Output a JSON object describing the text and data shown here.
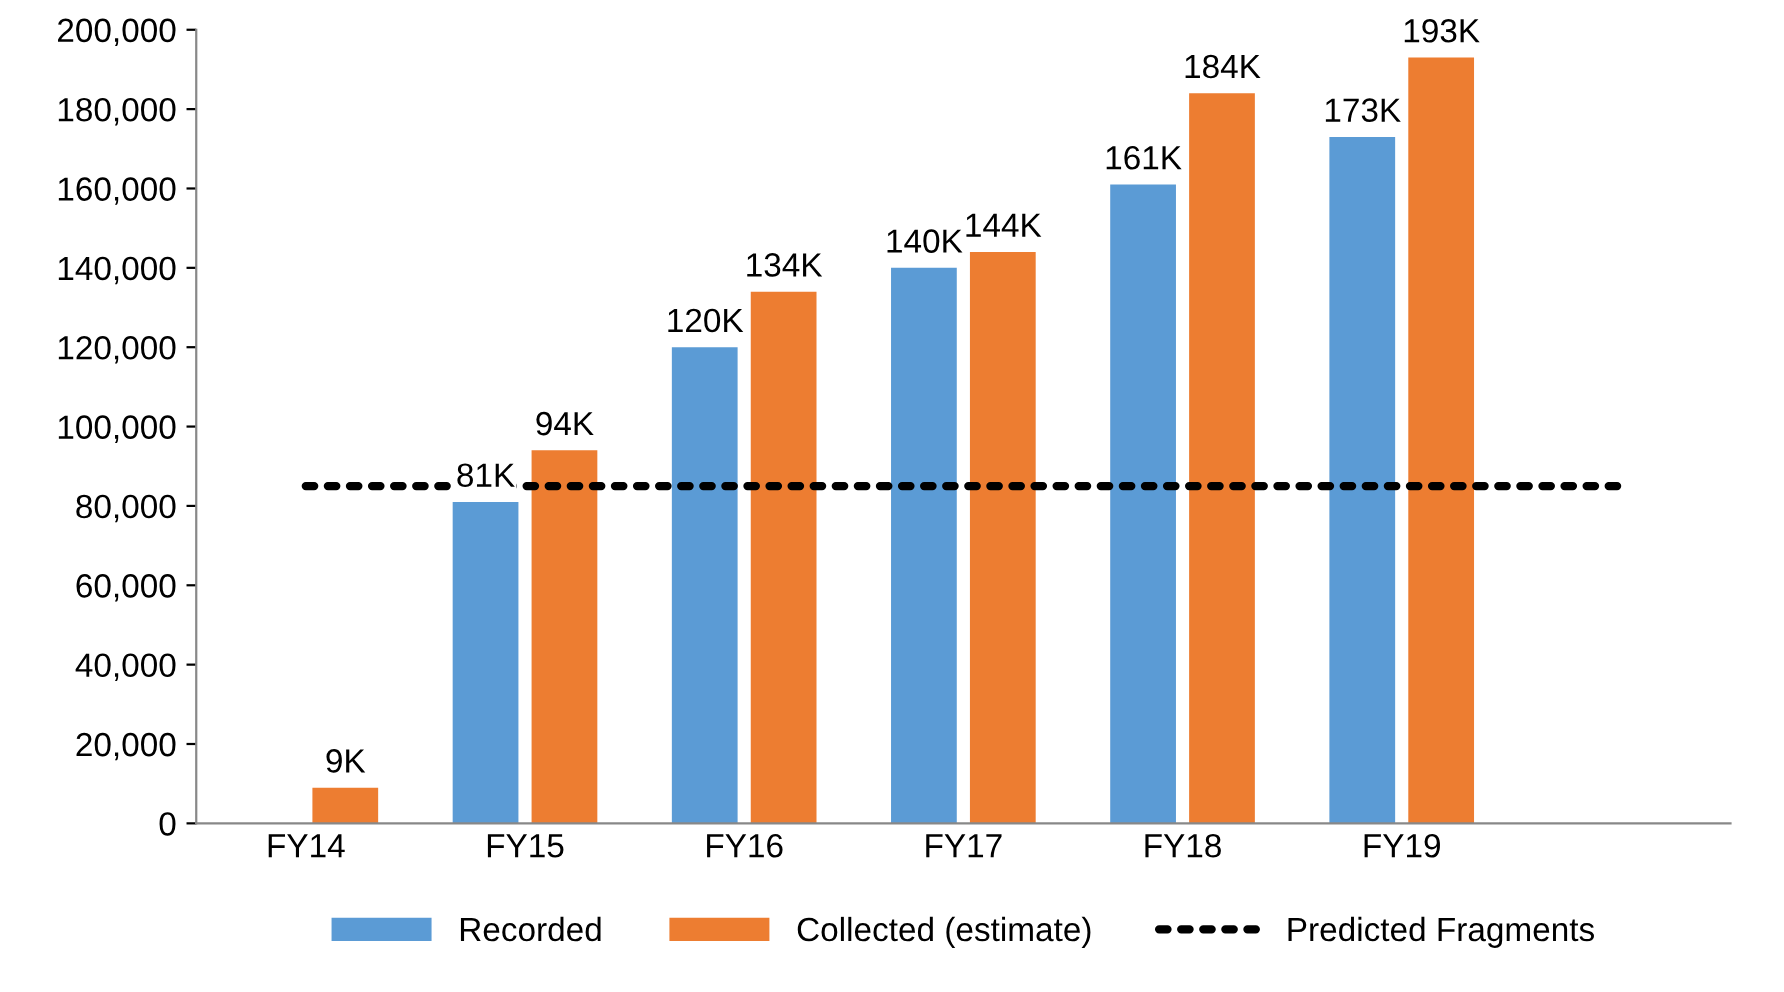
{
  "chart_data": {
    "type": "bar",
    "categories": [
      "FY14",
      "FY15",
      "FY16",
      "FY17",
      "FY18",
      "FY19",
      null
    ],
    "series": [
      {
        "name": "Recorded",
        "color": "#5b9bd5",
        "values": [
          null,
          81000,
          120000,
          140000,
          161000,
          173000,
          null
        ],
        "value_labels": [
          null,
          "81K",
          "120K",
          "140K",
          "161K",
          "173K",
          null
        ]
      },
      {
        "name": "Collected (estimate)",
        "color": "#ed7d31",
        "values": [
          9000,
          94000,
          134000,
          144000,
          184000,
          193000,
          null
        ],
        "value_labels": [
          "9K",
          "94K",
          "134K",
          "144K",
          "184K",
          "193K",
          null
        ]
      },
      {
        "name": "Predicted Fragments",
        "type": "line",
        "line_style": "dotted",
        "color": "#000000",
        "values": [
          85000,
          85000,
          85000,
          85000,
          85000,
          85000,
          85000
        ]
      }
    ],
    "ylim": [
      0,
      200000
    ],
    "yticks": [
      {
        "value": 0,
        "label": "0"
      },
      {
        "value": 20000,
        "label": "20,000"
      },
      {
        "value": 40000,
        "label": "40,000"
      },
      {
        "value": 60000,
        "label": "60,000"
      },
      {
        "value": 80000,
        "label": "80,000"
      },
      {
        "value": 100000,
        "label": "100,000"
      },
      {
        "value": 120000,
        "label": "120,000"
      },
      {
        "value": 140000,
        "label": "140,000"
      },
      {
        "value": 160000,
        "label": "160,000"
      },
      {
        "value": 180000,
        "label": "180,000"
      },
      {
        "value": 200000,
        "label": "200,000"
      }
    ],
    "grid": false,
    "legend": "bottom"
  }
}
